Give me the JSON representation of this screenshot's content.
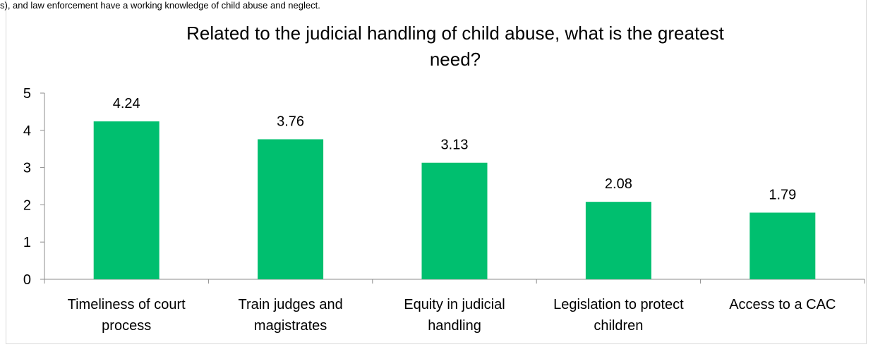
{
  "caption": "s), and law enforcement have a working knowledge of child abuse and neglect.",
  "chart_data": {
    "type": "bar",
    "title_lines": [
      "Related to the judicial handling of child abuse, what is the greatest",
      "need?"
    ],
    "categories": [
      [
        "Timeliness of court",
        "process"
      ],
      [
        "Train judges and",
        "magistrates"
      ],
      [
        "Equity in judicial",
        "handling"
      ],
      [
        "Legislation to protect",
        "children"
      ],
      [
        "Access to a CAC"
      ]
    ],
    "values": [
      4.24,
      3.76,
      3.13,
      2.08,
      1.79
    ],
    "data_labels": [
      "4.24",
      "3.76",
      "3.13",
      "2.08",
      "1.79"
    ],
    "yticks": [
      "0",
      "1",
      "2",
      "3",
      "4",
      "5"
    ],
    "ylim": [
      0,
      5
    ],
    "xlabel": "",
    "ylabel": "",
    "bar_color": "#00bf6f",
    "axis_color": "#8c8c8c",
    "grid": false,
    "legend": "none"
  }
}
